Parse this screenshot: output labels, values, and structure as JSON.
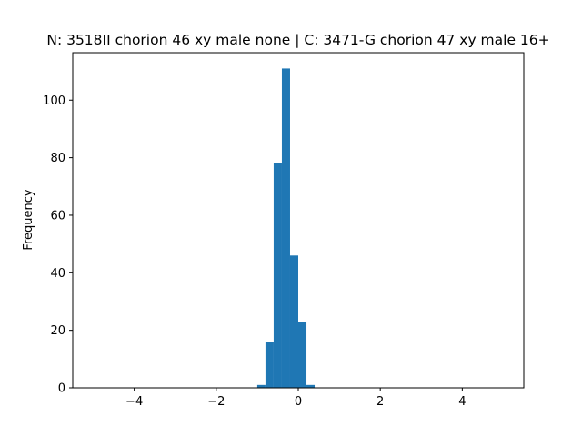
{
  "chart_data": {
    "type": "histogram",
    "title": "N: 3518II chorion 46 xy male none | C: 3471-G chorion 47 xy male 16+",
    "ylabel": "Frequency",
    "bins": [
      -1.0,
      -0.8,
      -0.6,
      -0.4,
      -0.2,
      0.0,
      0.2,
      0.4
    ],
    "values": [
      1,
      16,
      78,
      111,
      46,
      23,
      1
    ],
    "color": "#1f77b4",
    "xlim": [
      -5.5,
      5.5
    ],
    "ylim": [
      0,
      116.5
    ],
    "xticks": [
      {
        "value": -4,
        "label": "−4"
      },
      {
        "value": -2,
        "label": "−2"
      },
      0,
      2,
      4
    ],
    "yticks": [
      0,
      20,
      40,
      60,
      80,
      100
    ]
  }
}
